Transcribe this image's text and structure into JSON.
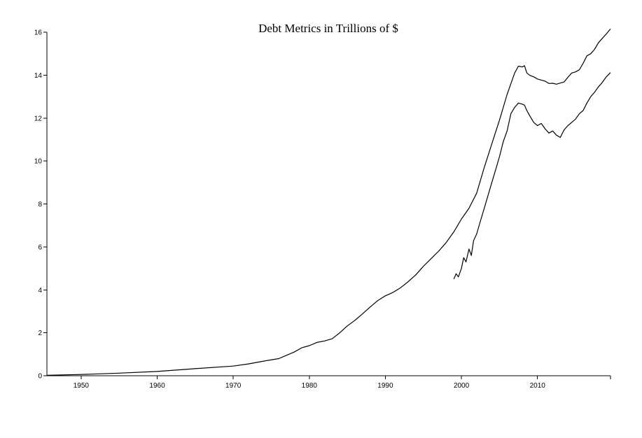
{
  "chart_data": {
    "type": "line",
    "title": "Debt Metrics in Trillions of $",
    "xlabel": "",
    "ylabel": "",
    "xlim": [
      1945.5,
      2019.6
    ],
    "ylim": [
      0,
      16
    ],
    "x_ticks": [
      1950,
      1960,
      1970,
      1980,
      1990,
      2000,
      2010
    ],
    "y_ticks": [
      0,
      2,
      4,
      6,
      8,
      10,
      12,
      14,
      16
    ],
    "grid": false,
    "legend": "none",
    "series": [
      {
        "x": [
          1945.5,
          1950,
          1955,
          1960,
          1965,
          1970,
          1972,
          1974,
          1976,
          1977,
          1978,
          1979,
          1980,
          1981,
          1982,
          1983,
          1984,
          1985,
          1986,
          1987,
          1988,
          1989,
          1990,
          1991,
          1992,
          1993,
          1994,
          1995,
          1996,
          1997,
          1998,
          1999,
          2000,
          2001,
          2002,
          2003,
          2004,
          2005,
          2006,
          2007,
          2007.5,
          2008,
          2008.3,
          2008.6,
          2009,
          2009.5,
          2010,
          2010.5,
          2011,
          2011.5,
          2012,
          2012.5,
          2013,
          2013.5,
          2014,
          2014.5,
          2015,
          2015.5,
          2016,
          2016.5,
          2017,
          2017.5,
          2018,
          2018.5,
          2019,
          2019.6
        ],
        "values": [
          0.02,
          0.06,
          0.12,
          0.2,
          0.33,
          0.45,
          0.55,
          0.68,
          0.8,
          0.95,
          1.1,
          1.3,
          1.4,
          1.55,
          1.62,
          1.72,
          2.0,
          2.32,
          2.58,
          2.88,
          3.2,
          3.5,
          3.72,
          3.88,
          4.1,
          4.38,
          4.7,
          5.1,
          5.45,
          5.8,
          6.2,
          6.7,
          7.3,
          7.8,
          8.5,
          9.7,
          10.8,
          11.9,
          13.1,
          14.1,
          14.42,
          14.38,
          14.44,
          14.1,
          13.99,
          13.92,
          13.82,
          13.77,
          13.72,
          13.61,
          13.62,
          13.58,
          13.63,
          13.68,
          13.9,
          14.1,
          14.15,
          14.25,
          14.55,
          14.9,
          15.0,
          15.2,
          15.5,
          15.7,
          15.9,
          16.15
        ]
      },
      {
        "x": [
          1999,
          1999.3,
          1999.6,
          2000,
          2000.3,
          2000.6,
          2001,
          2001.3,
          2001.6,
          2002,
          2002.5,
          2003,
          2003.5,
          2004,
          2004.5,
          2005,
          2005.5,
          2006,
          2006.5,
          2007,
          2007.5,
          2008,
          2008.3,
          2008.6,
          2009,
          2009.5,
          2010,
          2010.5,
          2011,
          2011.5,
          2012,
          2012.5,
          2013,
          2013.5,
          2014,
          2014.5,
          2015,
          2015.5,
          2016,
          2016.5,
          2017,
          2017.5,
          2018,
          2018.5,
          2019,
          2019.6
        ],
        "values": [
          4.5,
          4.75,
          4.6,
          5.0,
          5.5,
          5.3,
          5.9,
          5.6,
          6.3,
          6.6,
          7.2,
          7.8,
          8.4,
          9.0,
          9.6,
          10.2,
          10.9,
          11.4,
          12.2,
          12.5,
          12.7,
          12.65,
          12.6,
          12.35,
          12.1,
          11.8,
          11.65,
          11.75,
          11.5,
          11.3,
          11.4,
          11.2,
          11.1,
          11.45,
          11.65,
          11.8,
          11.95,
          12.2,
          12.35,
          12.7,
          13.0,
          13.2,
          13.45,
          13.65,
          13.9,
          14.12
        ]
      }
    ]
  }
}
